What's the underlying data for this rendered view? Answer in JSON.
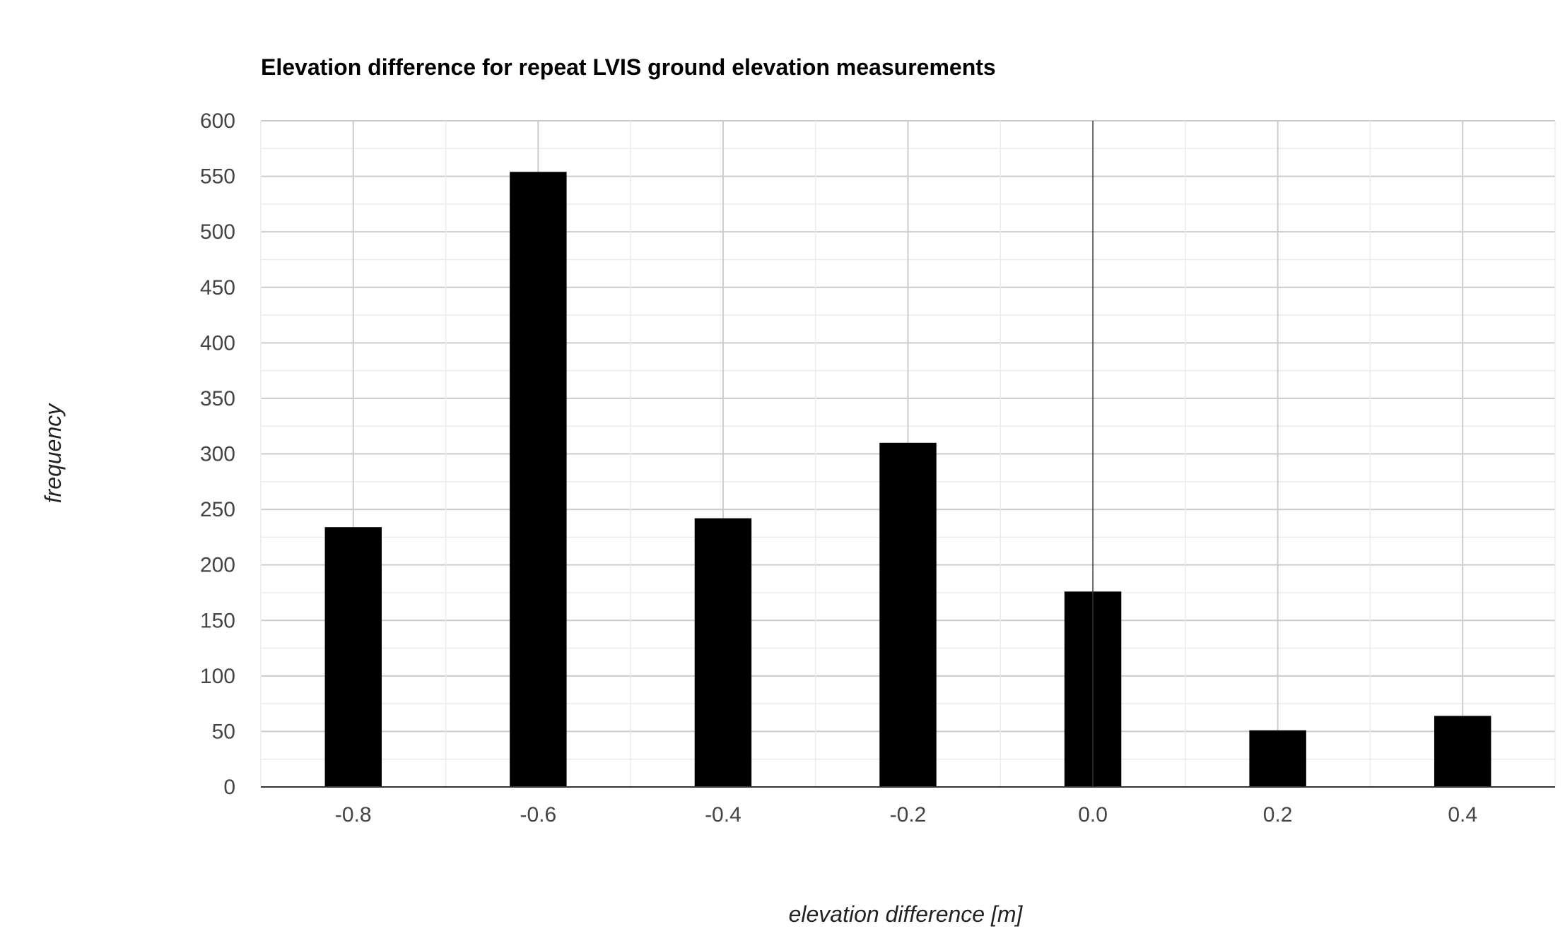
{
  "chart_data": {
    "type": "bar",
    "title": "Elevation difference for repeat LVIS ground elevation measurements",
    "xlabel": "elevation difference [m]",
    "ylabel": "frequency",
    "x": [
      -0.8,
      -0.6,
      -0.4,
      -0.2,
      0.0,
      0.2,
      0.4
    ],
    "values": [
      234,
      554,
      242,
      310,
      176,
      51,
      64
    ],
    "x_tick_labels": [
      "-0.8",
      "-0.6",
      "-0.4",
      "-0.2",
      "0.0",
      "0.2",
      "0.4"
    ],
    "y_tick_labels": [
      "0",
      "50",
      "100",
      "150",
      "200",
      "250",
      "300",
      "350",
      "400",
      "450",
      "500",
      "550",
      "600"
    ],
    "xlim": [
      -0.9,
      0.5
    ],
    "ylim": [
      0,
      600
    ],
    "y_major_step": 50,
    "y_minor_step": 25,
    "x_minor_step": 0.1,
    "grid": true,
    "legend": "none",
    "bar_color": "#000000",
    "major_grid_color": "#cccccc",
    "minor_grid_color": "#ebebeb",
    "baseline_color": "#333333"
  }
}
